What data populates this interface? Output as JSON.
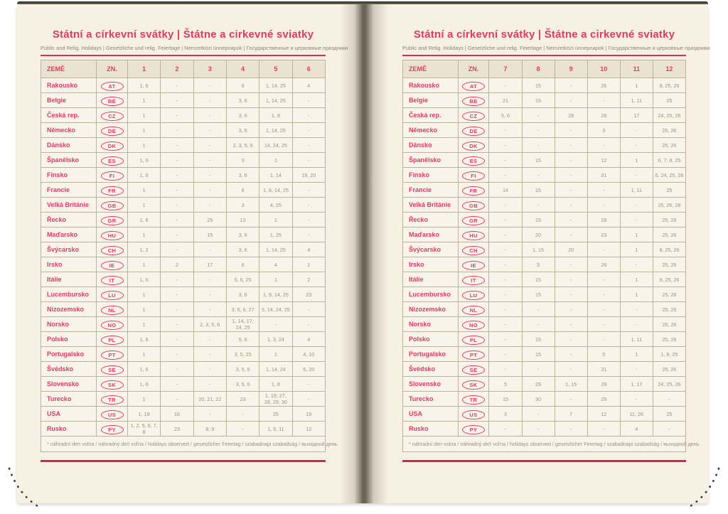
{
  "book": {
    "title": "Státní a církevní svátky | Štátne a cirkevné sviatky",
    "subtitle": "Public and Relig. Holidays | Gesetzliche und relig. Feiertage | Nemzetközi ünnepnapok | Государственные и церковные праздники",
    "footnote": "* náhradní den volna / náhradný deň voľna / holidays observed / gesetzlicher Feiertag / szabadnapi szabadság / выходной день",
    "col_country": "ZEMĚ",
    "col_code": "ZN."
  },
  "colors": {
    "accent_pink": "#e23965",
    "rule_red": "#cf2750",
    "paper": "#f7f1e4",
    "header_row_bg": "#ebe3d1",
    "cell_bg": "#f9f4e9",
    "border": "#bcb29e",
    "value_text": "#9a927f"
  },
  "left_page": {
    "months": [
      "1",
      "2",
      "3",
      "4",
      "5",
      "6"
    ],
    "rows": [
      {
        "country": "Rakousko",
        "code": "AT",
        "values": [
          "1, 6",
          "-",
          "-",
          "6",
          "1, 14, 25",
          "4"
        ]
      },
      {
        "country": "Belgie",
        "code": "BE",
        "values": [
          "1",
          "-",
          "-",
          "3, 6",
          "1, 14, 25",
          "-"
        ]
      },
      {
        "country": "Česká rep.",
        "code": "CZ",
        "values": [
          "1",
          "-",
          "-",
          "3, 6",
          "1, 8",
          "-"
        ]
      },
      {
        "country": "Německo",
        "code": "DE",
        "values": [
          "1",
          "-",
          "-",
          "3, 6",
          "1, 14, 25",
          "-"
        ]
      },
      {
        "country": "Dánsko",
        "code": "DK",
        "values": [
          "1",
          "-",
          "-",
          "2, 3, 5, 6",
          "14, 24, 25",
          "-"
        ]
      },
      {
        "country": "Španělsko",
        "code": "ES",
        "values": [
          "1, 6",
          "-",
          "-",
          "3",
          "1",
          "-"
        ]
      },
      {
        "country": "Finsko",
        "code": "FI",
        "values": [
          "1, 6",
          "-",
          "-",
          "3, 6",
          "1, 14",
          "19, 20"
        ]
      },
      {
        "country": "Francie",
        "code": "FR",
        "values": [
          "1",
          "-",
          "-",
          "6",
          "1, 8, 14, 25",
          "-"
        ]
      },
      {
        "country": "Velká Británie",
        "code": "GB",
        "values": [
          "1",
          "-",
          "-",
          "3",
          "4, 25",
          "-"
        ]
      },
      {
        "country": "Řecko",
        "code": "GR",
        "values": [
          "1, 6",
          "-",
          "25",
          "13",
          "1",
          "-"
        ]
      },
      {
        "country": "Maďarsko",
        "code": "HU",
        "values": [
          "1",
          "-",
          "15",
          "3, 6",
          "1, 25",
          "-"
        ]
      },
      {
        "country": "Švýcarsko",
        "code": "CH",
        "values": [
          "1, 2",
          "-",
          "-",
          "3, 6",
          "1, 14, 25",
          "4"
        ]
      },
      {
        "country": "Irsko",
        "code": "IE",
        "values": [
          "1",
          "2",
          "17",
          "6",
          "4",
          "1"
        ]
      },
      {
        "country": "Itálie",
        "code": "IT",
        "values": [
          "1, 6",
          "-",
          "-",
          "5, 6, 25",
          "1",
          "2"
        ]
      },
      {
        "country": "Lucembursko",
        "code": "LU",
        "values": [
          "1",
          "-",
          "-",
          "3, 6",
          "1, 9, 14, 25",
          "23"
        ]
      },
      {
        "country": "Nizozemsko",
        "code": "NL",
        "values": [
          "1",
          "-",
          "-",
          "3, 5, 6, 27",
          "5, 14, 24, 25",
          "-"
        ]
      },
      {
        "country": "Norsko",
        "code": "NO",
        "values": [
          "1",
          "-",
          "2, 3, 5, 6",
          "1, 14, 17, 24, 25",
          "-",
          "-"
        ]
      },
      {
        "country": "Polsko",
        "code": "PL",
        "values": [
          "1, 6",
          "-",
          "-",
          "5, 6",
          "1, 3, 24",
          "4"
        ]
      },
      {
        "country": "Portugalsko",
        "code": "PT",
        "values": [
          "1",
          "-",
          "-",
          "3, 5, 25",
          "1",
          "4, 10"
        ]
      },
      {
        "country": "Švédsko",
        "code": "SE",
        "values": [
          "1, 6",
          "-",
          "-",
          "3, 5, 6",
          "1, 14, 24",
          "6, 20"
        ]
      },
      {
        "country": "Slovensko",
        "code": "SK",
        "values": [
          "1, 6",
          "-",
          "-",
          "3, 5, 6",
          "1, 8",
          "-"
        ]
      },
      {
        "country": "Turecko",
        "code": "TR",
        "values": [
          "1",
          "-",
          "20, 21, 22",
          "23",
          "1, 19, 27, 28, 29, 30",
          "-"
        ]
      },
      {
        "country": "USA",
        "code": "US",
        "values": [
          "1, 19",
          "16",
          "-",
          "-",
          "25",
          "19"
        ]
      },
      {
        "country": "Rusko",
        "code": "PY",
        "values": [
          "1, 2, 5, 6, 7, 8",
          "23",
          "8, 9",
          "-",
          "1, 9, 11",
          "12"
        ]
      }
    ]
  },
  "right_page": {
    "months": [
      "7",
      "8",
      "9",
      "10",
      "11",
      "12"
    ],
    "rows": [
      {
        "country": "Rakousko",
        "code": "AT",
        "values": [
          "-",
          "15",
          "-",
          "26",
          "1",
          "8, 25, 26"
        ]
      },
      {
        "country": "Belgie",
        "code": "BE",
        "values": [
          "21",
          "15",
          "-",
          "-",
          "1, 11",
          "25"
        ]
      },
      {
        "country": "Česká rep.",
        "code": "CZ",
        "values": [
          "5, 6",
          "-",
          "28",
          "28",
          "17",
          "24, 25, 26"
        ]
      },
      {
        "country": "Německo",
        "code": "DE",
        "values": [
          "-",
          "-",
          "-",
          "3",
          "-",
          "25, 26"
        ]
      },
      {
        "country": "Dánsko",
        "code": "DK",
        "values": [
          "-",
          "-",
          "-",
          "-",
          "-",
          "25, 26"
        ]
      },
      {
        "country": "Španělsko",
        "code": "ES",
        "values": [
          "-",
          "15",
          "-",
          "12",
          "1",
          "6, 7, 8, 25"
        ]
      },
      {
        "country": "Finsko",
        "code": "FI",
        "values": [
          "-",
          "-",
          "-",
          "31",
          "-",
          "6, 24, 25, 26"
        ]
      },
      {
        "country": "Francie",
        "code": "FR",
        "values": [
          "14",
          "15",
          "-",
          "-",
          "1, 11",
          "25"
        ]
      },
      {
        "country": "Velká Británie",
        "code": "GB",
        "values": [
          "-",
          "-",
          "-",
          "-",
          "-",
          "25, 26, 28"
        ]
      },
      {
        "country": "Řecko",
        "code": "GR",
        "values": [
          "-",
          "15",
          "-",
          "28",
          "-",
          "25, 26"
        ]
      },
      {
        "country": "Maďarsko",
        "code": "HU",
        "values": [
          "-",
          "20",
          "-",
          "23",
          "1",
          "25, 26"
        ]
      },
      {
        "country": "Švýcarsko",
        "code": "CH",
        "values": [
          "-",
          "1, 15",
          "20",
          "-",
          "1",
          "8, 25, 26"
        ]
      },
      {
        "country": "Irsko",
        "code": "IE",
        "values": [
          "-",
          "3",
          "-",
          "26",
          "-",
          "25, 26"
        ]
      },
      {
        "country": "Itálie",
        "code": "IT",
        "values": [
          "-",
          "15",
          "-",
          "-",
          "1",
          "8, 25, 26"
        ]
      },
      {
        "country": "Lucembursko",
        "code": "LU",
        "values": [
          "-",
          "15",
          "-",
          "-",
          "1",
          "25, 26"
        ]
      },
      {
        "country": "Nizozemsko",
        "code": "NL",
        "values": [
          "-",
          "-",
          "-",
          "-",
          "-",
          "25, 26"
        ]
      },
      {
        "country": "Norsko",
        "code": "NO",
        "values": [
          "-",
          "-",
          "-",
          "-",
          "-",
          "25, 26"
        ]
      },
      {
        "country": "Polsko",
        "code": "PL",
        "values": [
          "-",
          "15",
          "-",
          "-",
          "1, 11",
          "25, 26"
        ]
      },
      {
        "country": "Portugalsko",
        "code": "PT",
        "values": [
          "-",
          "15",
          "-",
          "5",
          "1",
          "1, 8, 25"
        ]
      },
      {
        "country": "Švédsko",
        "code": "SE",
        "values": [
          "-",
          "-",
          "-",
          "31",
          "-",
          "25, 26"
        ]
      },
      {
        "country": "Slovensko",
        "code": "SK",
        "values": [
          "5",
          "29",
          "1, 15",
          "28",
          "1, 17",
          "24, 25, 26"
        ]
      },
      {
        "country": "Turecko",
        "code": "TR",
        "values": [
          "15",
          "30",
          "-",
          "29",
          "-",
          "-"
        ]
      },
      {
        "country": "USA",
        "code": "US",
        "values": [
          "3",
          "-",
          "7",
          "12",
          "11, 26",
          "25"
        ]
      },
      {
        "country": "Rusko",
        "code": "PY",
        "values": [
          "-",
          "-",
          "-",
          "-",
          "4",
          "-"
        ]
      }
    ]
  }
}
